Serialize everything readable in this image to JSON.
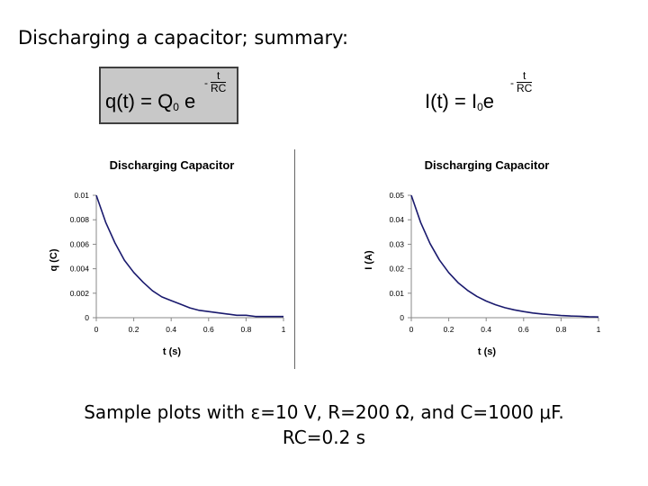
{
  "slide": {
    "title": "Discharging a capacitor; summary:",
    "formula_q": {
      "lhs": "q(t) = Q",
      "sub": "0",
      "base": " e",
      "exp_minus": "-",
      "exp_num": "t",
      "exp_den": "RC"
    },
    "formula_i": {
      "lhs": "I(t) = I",
      "sub": "0",
      "base": "e",
      "exp_minus": "-",
      "exp_num": "t",
      "exp_den": "RC"
    },
    "caption_line1": "Sample plots with ε=10 V, R=200 Ω, and C=1000 μF.",
    "caption_line2": "RC=0.2 s"
  },
  "chart_data": [
    {
      "type": "line",
      "title": "Discharging Capacitor",
      "xlabel": "t (s)",
      "ylabel": "q (C)",
      "xlim": [
        0,
        1
      ],
      "ylim": [
        0,
        0.01
      ],
      "xticks": [
        "0",
        "0.2",
        "0.4",
        "0.6",
        "0.8",
        "1"
      ],
      "yticks": [
        "0",
        "0.002",
        "0.004",
        "0.006",
        "0.008",
        "0.01"
      ],
      "grid": false,
      "series": [
        {
          "color": "#1a1a6e",
          "x": [
            0,
            0.05,
            0.1,
            0.15,
            0.2,
            0.25,
            0.3,
            0.35,
            0.4,
            0.45,
            0.5,
            0.55,
            0.6,
            0.65,
            0.7,
            0.75,
            0.8,
            0.85,
            0.9,
            0.95,
            1.0
          ],
          "y": [
            0.01,
            0.0078,
            0.0061,
            0.0047,
            0.0037,
            0.0029,
            0.0022,
            0.0017,
            0.0014,
            0.0011,
            0.0008,
            0.0006,
            0.0005,
            0.0004,
            0.0003,
            0.0002,
            0.0002,
            0.0001,
            0.0001,
            0.0001,
            0.0001
          ]
        }
      ]
    },
    {
      "type": "line",
      "title": "Discharging Capacitor",
      "xlabel": "t (s)",
      "ylabel": "I (A)",
      "xlim": [
        0,
        1
      ],
      "ylim": [
        0,
        0.05
      ],
      "xticks": [
        "0",
        "0.2",
        "0.4",
        "0.6",
        "0.8",
        "1"
      ],
      "yticks": [
        "0",
        "0.01",
        "0.02",
        "0.03",
        "0.04",
        "0.05"
      ],
      "grid": false,
      "series": [
        {
          "color": "#1a1a6e",
          "x": [
            0,
            0.05,
            0.1,
            0.15,
            0.2,
            0.25,
            0.3,
            0.35,
            0.4,
            0.45,
            0.5,
            0.55,
            0.6,
            0.65,
            0.7,
            0.75,
            0.8,
            0.85,
            0.9,
            0.95,
            1.0
          ],
          "y": [
            0.05,
            0.0389,
            0.0303,
            0.0236,
            0.0184,
            0.0143,
            0.0112,
            0.0087,
            0.0068,
            0.0053,
            0.0041,
            0.0032,
            0.0025,
            0.0019,
            0.0015,
            0.0012,
            0.0009,
            0.0007,
            0.0006,
            0.0004,
            0.0003
          ]
        }
      ]
    }
  ]
}
